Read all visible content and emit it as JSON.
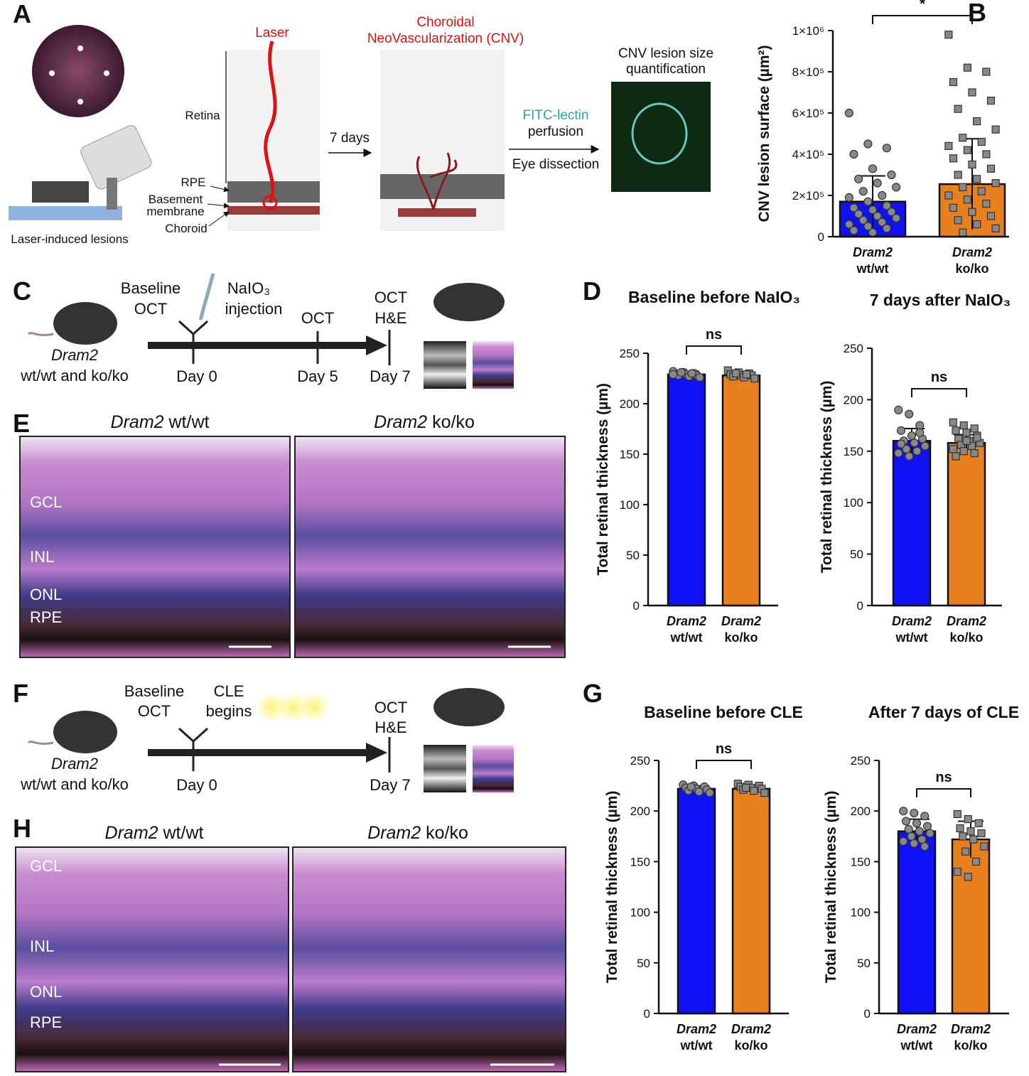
{
  "panels": {
    "letters": [
      "A",
      "B",
      "C",
      "D",
      "E",
      "F",
      "G",
      "H"
    ],
    "a": {
      "laser": "Laser",
      "cnv": [
        "Choroidal",
        "NeoVascularization (CNV)"
      ],
      "retina": "Retina",
      "rpe": "RPE",
      "basement": [
        "Basement",
        "membrane"
      ],
      "choroid": "Choroid",
      "days": "7 days",
      "fitc": "FITC-lectin",
      "perfusion": "perfusion",
      "dissection": "Eye dissection",
      "quant": [
        "CNV lesion size",
        "quantification"
      ],
      "lesions": "Laser-induced lesions"
    },
    "c": {
      "baseline": [
        "Baseline",
        "OCT"
      ],
      "injection": [
        "NaIO₃",
        "injection"
      ],
      "oct5": "OCT",
      "oct7": [
        "OCT",
        "H&E"
      ],
      "mouse": [
        "Dram2",
        "wt/wt and ko/ko"
      ],
      "days": [
        "Day 0",
        "Day 5",
        "Day 7"
      ]
    },
    "e": {
      "titles": [
        {
          "gene": "Dram2",
          "genotype": " wt/wt"
        },
        {
          "gene": "Dram2",
          "genotype": " ko/ko"
        }
      ],
      "layers": [
        "GCL",
        "INL",
        "ONL",
        "RPE"
      ]
    },
    "f": {
      "baseline": [
        "Baseline",
        "OCT"
      ],
      "cle": [
        "CLE",
        "begins"
      ],
      "oct7": [
        "OCT",
        "H&E"
      ],
      "mouse": [
        "Dram2",
        "wt/wt and ko/ko"
      ],
      "days": [
        "Day 0",
        "Day 7"
      ]
    },
    "h": {
      "titles": [
        {
          "gene": "Dram2",
          "genotype": " wt/wt"
        },
        {
          "gene": "Dram2",
          "genotype": " ko/ko"
        }
      ],
      "layers": [
        "GCL",
        "INL",
        "ONL",
        "RPE"
      ]
    }
  },
  "chart_data": [
    {
      "type": "bar",
      "ylabel": "CNV lesion surface (µm²)",
      "categories": [
        [
          "Dram2",
          "wt/wt"
        ],
        [
          "Dram2",
          "ko/ko"
        ]
      ],
      "colors": [
        "#1010f5",
        "#e8801e"
      ],
      "markers": [
        "circle",
        "square"
      ],
      "values": [
        170000,
        255000
      ],
      "errors": [
        125000,
        220000
      ],
      "significance": "*",
      "points": [
        [
          600000,
          450000,
          430000,
          400000,
          330000,
          300000,
          280000,
          260000,
          240000,
          220000,
          200000,
          190000,
          170000,
          150000,
          140000,
          130000,
          120000,
          110000,
          100000,
          90000,
          80000,
          70000,
          60000,
          50000,
          40000,
          30000,
          20000
        ],
        [
          980000,
          820000,
          800000,
          750000,
          700000,
          660000,
          620000,
          560000,
          520000,
          480000,
          460000,
          440000,
          420000,
          400000,
          380000,
          350000,
          330000,
          300000,
          280000,
          260000,
          240000,
          220000,
          200000,
          180000,
          160000,
          140000,
          120000,
          100000,
          80000,
          60000,
          40000,
          20000
        ]
      ],
      "ylim": [
        0,
        1000000
      ],
      "yticks": [
        0,
        {
          "value": 200000,
          "label": "2×10⁵"
        },
        {
          "value": 400000,
          "label": "4×10⁵"
        },
        {
          "value": 600000,
          "label": "6×10⁵"
        },
        {
          "value": 800000,
          "label": "8×10⁵"
        },
        {
          "value": 1000000,
          "label": "1×10⁶"
        }
      ]
    },
    {
      "type": "bar",
      "title": "Baseline before NaIO₃",
      "ylabel": "Total retinal thickness (µm)",
      "categories": [
        [
          "Dram2",
          "wt/wt"
        ],
        [
          "Dram2",
          "ko/ko"
        ]
      ],
      "colors": [
        "#1010f5",
        "#e8801e"
      ],
      "markers": [
        "circle",
        "square"
      ],
      "values": [
        229,
        228
      ],
      "errors": [
        3,
        3
      ],
      "significance": "ns",
      "points": [
        [
          232,
          231,
          230,
          229,
          229,
          228,
          228,
          227,
          226,
          231,
          230,
          229
        ],
        [
          233,
          231,
          230,
          229,
          228,
          228,
          227,
          226,
          225,
          230,
          229
        ]
      ],
      "ylim": [
        0,
        250
      ],
      "yticks": [
        0,
        50,
        100,
        150,
        200,
        250
      ]
    },
    {
      "type": "bar",
      "title": "7 days after NaIO₃",
      "ylabel": "Total retinal thickness (µm)",
      "categories": [
        [
          "Dram2",
          "wt/wt"
        ],
        [
          "Dram2",
          "ko/ko"
        ]
      ],
      "colors": [
        "#1010f5",
        "#e8801e"
      ],
      "markers": [
        "circle",
        "square"
      ],
      "values": [
        160,
        158
      ],
      "errors": [
        12,
        8
      ],
      "significance": "ns",
      "points": [
        [
          190,
          186,
          175,
          170,
          165,
          162,
          160,
          158,
          155,
          152,
          150,
          148,
          145,
          168,
          157
        ],
        [
          178,
          175,
          172,
          170,
          168,
          165,
          162,
          160,
          158,
          156,
          155,
          152,
          150,
          148,
          145,
          160,
          163
        ]
      ],
      "ylim": [
        0,
        250
      ],
      "yticks": [
        0,
        50,
        100,
        150,
        200,
        250
      ]
    },
    {
      "type": "bar",
      "title": "Baseline before CLE",
      "ylabel": "Total retinal thickness (µm)",
      "categories": [
        [
          "Dram2",
          "wt/wt"
        ],
        [
          "Dram2",
          "ko/ko"
        ]
      ],
      "colors": [
        "#1010f5",
        "#e8801e"
      ],
      "markers": [
        "circle",
        "square"
      ],
      "values": [
        222,
        222
      ],
      "errors": [
        3,
        3
      ],
      "significance": "ns",
      "points": [
        [
          226,
          225,
          224,
          223,
          222,
          221,
          220,
          219,
          218,
          224
        ],
        [
          227,
          226,
          225,
          224,
          223,
          222,
          221,
          220,
          218,
          223
        ]
      ],
      "ylim": [
        0,
        250
      ],
      "yticks": [
        0,
        50,
        100,
        150,
        200,
        250
      ]
    },
    {
      "type": "bar",
      "title": "After 7 days of CLE",
      "ylabel": "Total retinal thickness (µm)",
      "categories": [
        [
          "Dram2",
          "wt/wt"
        ],
        [
          "Dram2",
          "ko/ko"
        ]
      ],
      "colors": [
        "#1010f5",
        "#e8801e"
      ],
      "markers": [
        "circle",
        "square"
      ],
      "values": [
        180,
        172
      ],
      "errors": [
        12,
        18
      ],
      "significance": "ns",
      "points": [
        [
          200,
          198,
          195,
          190,
          188,
          185,
          182,
          180,
          178,
          175,
          172,
          170,
          168,
          165
        ],
        [
          197,
          192,
          188,
          183,
          180,
          178,
          175,
          172,
          165,
          160,
          150,
          140,
          135
        ]
      ],
      "ylim": [
        0,
        250
      ],
      "yticks": [
        0,
        50,
        100,
        150,
        200,
        250
      ]
    }
  ]
}
